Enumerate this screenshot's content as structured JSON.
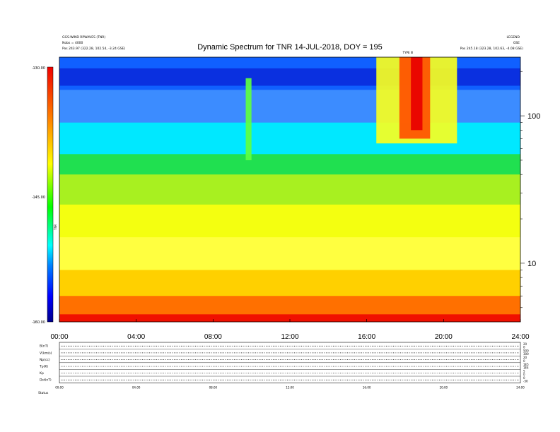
{
  "chart_data": {
    "type": "heatmap",
    "title": "Dynamic Spectrum for TNR 14-JUL-2018, DOY = 195",
    "header_left": [
      "GGS-WIND RPWAVES (TNR)",
      "Nobs = 4000"
    ],
    "header_right": [
      "LEGEND",
      "GSE"
    ],
    "left_position": "Pos   243.97 (322.28, 102.54, -3.24 GSE)",
    "right_position": "Pos   245.18 (323.28, 102.63, -4.08 GSE)",
    "colorbar": {
      "label": "TNR",
      "tick_labels": [
        "-130.00",
        "-145.00",
        "-160.00"
      ],
      "range": [
        -160,
        -130
      ],
      "stops": [
        "#f00000",
        "#ff8000",
        "#ffff00",
        "#00d000",
        "#00ffff",
        "#0000c0"
      ]
    },
    "x_ticks": [
      "00:00",
      "04:00",
      "08:00",
      "12:00",
      "16:00",
      "20:00",
      "24:00"
    ],
    "x_range_hours": [
      0,
      24
    ],
    "y_ticks": [
      "100",
      "10"
    ],
    "y_scale": "log",
    "y_range_khz": [
      4,
      250
    ],
    "bands": [
      {
        "f_low": 150,
        "f_high": 250,
        "dB": -135
      },
      {
        "f_low": 90,
        "f_high": 150,
        "dB": -137
      },
      {
        "f_low": 55,
        "f_high": 90,
        "dB": -139
      },
      {
        "f_low": 40,
        "f_high": 55,
        "dB": -143
      },
      {
        "f_low": 25,
        "f_high": 40,
        "dB": -146
      },
      {
        "f_low": 15,
        "f_high": 25,
        "dB": -148.5
      },
      {
        "f_low": 9,
        "f_high": 15,
        "dB": -150.5
      },
      {
        "f_low": 6,
        "f_high": 9,
        "dB": -153
      },
      {
        "f_low": 4.5,
        "f_high": 6,
        "dB": -156
      },
      {
        "f_low": 4,
        "f_high": 4.5,
        "dB": -159
      }
    ],
    "events": [
      {
        "t_start": 16.5,
        "t_end": 20.7,
        "f_low": 65,
        "f_high": 250,
        "dB": -141
      },
      {
        "t_start": 17.7,
        "t_end": 19.3,
        "f_low": 70,
        "f_high": 250,
        "dB": -133
      },
      {
        "t_start": 18.3,
        "t_end": 18.9,
        "f_low": 80,
        "f_high": 250,
        "dB": -130
      },
      {
        "t_start": 9.7,
        "t_end": 10.0,
        "f_low": 50,
        "f_high": 180,
        "dB": -139
      }
    ],
    "event_label": "TYPE III",
    "panels": [
      {
        "label": "B(nT)",
        "right_ticks": [
          "20",
          "0"
        ]
      },
      {
        "label": "V(km/s)",
        "right_ticks": [
          "500",
          "300"
        ]
      },
      {
        "label": "Np(cc)",
        "right_ticks": [
          "20",
          "0"
        ]
      },
      {
        "label": "Tp(K)",
        "right_ticks": [
          "1E5",
          "1E4"
        ]
      },
      {
        "label": "Kp",
        "right_ticks": [
          "5",
          "0"
        ]
      },
      {
        "label": "Dst(nT)",
        "right_ticks": [
          "0",
          "-50"
        ]
      }
    ],
    "bottom_ticks": [
      "00:00",
      "04:00",
      "08:00",
      "12:00",
      "16:00",
      "20:00",
      "24:00"
    ],
    "footer_label": "Status"
  }
}
